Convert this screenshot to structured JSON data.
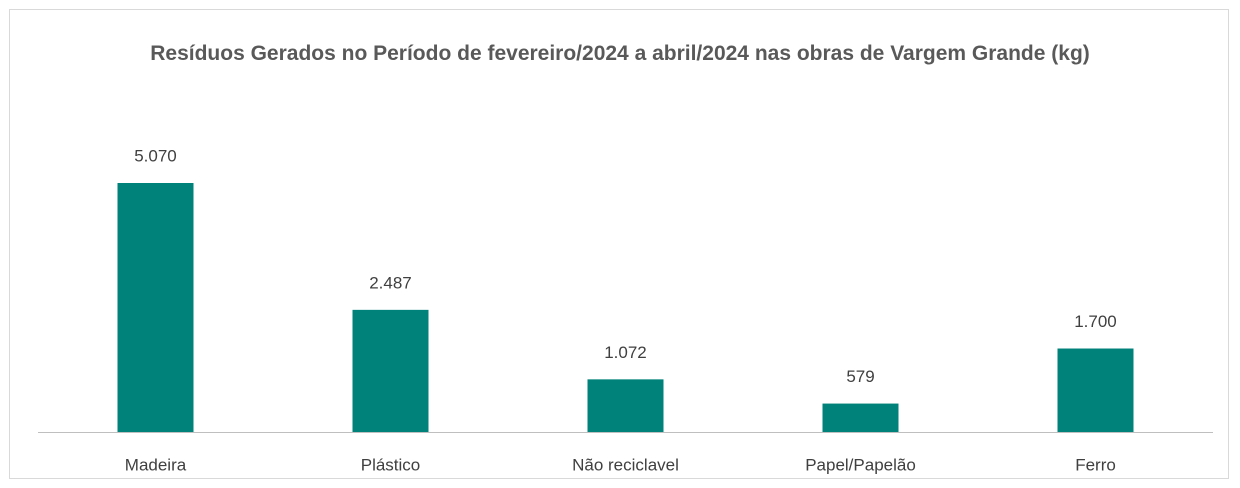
{
  "chart_data": {
    "type": "bar",
    "title": "Resíduos Gerados no Período de fevereiro/2024 a abril/2024 nas obras de Vargem Grande (kg)",
    "categories": [
      "Madeira",
      "Plástico",
      "Não reciclavel",
      "Papel/Papelão",
      "Ferro"
    ],
    "values": [
      5070,
      2487,
      1072,
      579,
      1700
    ],
    "value_labels": [
      "5.070",
      "2.487",
      "1.072",
      "579",
      "1.700"
    ],
    "color": "#00827a"
  }
}
